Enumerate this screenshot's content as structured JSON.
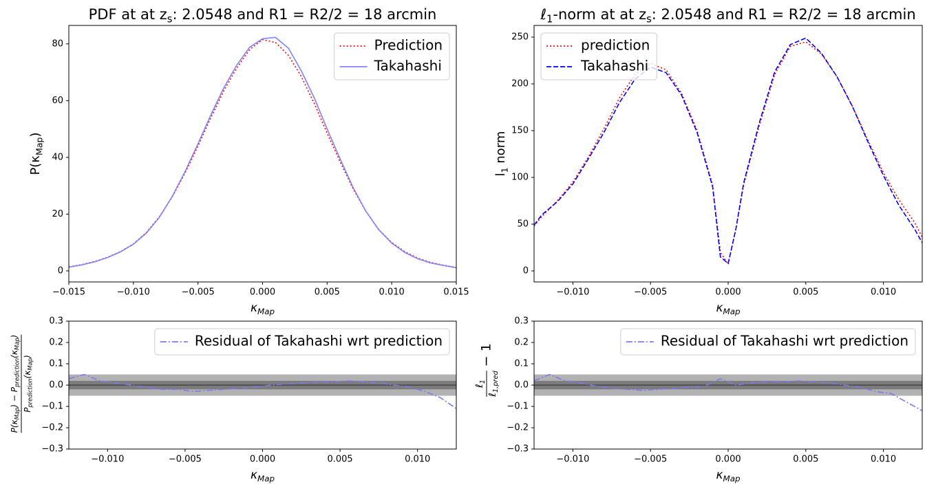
{
  "chart_data": [
    {
      "type": "line",
      "title": [
        "PDF at at z",
        "s",
        ": 2.0548 and R1 = R2/2 = 18 arcmin"
      ],
      "xlabel": [
        "κ",
        "Map"
      ],
      "ylabel": [
        "P(κ",
        "Map",
        ")"
      ],
      "xlim": [
        -0.015,
        0.015
      ],
      "ylim": [
        -3.9,
        86.5
      ],
      "xticks": [
        {
          "value": -0.015,
          "label": "−0.015"
        },
        {
          "value": -0.01,
          "label": "−0.010"
        },
        {
          "value": -0.005,
          "label": "−0.005"
        },
        {
          "value": 0,
          "label": "0.000"
        },
        0.005,
        {
          "value": 0.01,
          "label": "0.010"
        },
        0.015
      ],
      "yticks": [
        0,
        20,
        40,
        60,
        80
      ],
      "legend": "upper right",
      "x": [
        -0.015,
        -0.014,
        -0.013,
        -0.012,
        -0.011,
        -0.01,
        -0.009,
        -0.008,
        -0.007,
        -0.006,
        -0.005,
        -0.004,
        -0.003,
        -0.002,
        -0.001,
        0,
        0.001,
        0.002,
        0.003,
        0.004,
        0.005,
        0.006,
        0.007,
        0.008,
        0.009,
        0.01,
        0.011,
        0.012,
        0.013,
        0.014,
        0.015
      ],
      "series": [
        {
          "name": "Prediction",
          "color": "#ff0000",
          "linestyle": "dotted",
          "values": [
            1.4,
            2.2,
            3.3,
            4.8,
            6.8,
            9.5,
            13.5,
            19,
            26,
            34.5,
            44,
            54,
            63.5,
            71.5,
            78,
            81.5,
            80.5,
            76,
            68.5,
            59,
            48.5,
            38.5,
            29,
            21,
            14.5,
            10,
            6.8,
            4.5,
            3,
            2,
            1.2
          ]
        },
        {
          "name": "Takahashi",
          "color": "#8080ff",
          "linestyle": "solid",
          "values": [
            1.3,
            2.1,
            3.2,
            4.7,
            6.7,
            9.4,
            13.3,
            18.8,
            26.2,
            35,
            44.8,
            55,
            64.5,
            72.5,
            78.8,
            81.8,
            82.3,
            78.5,
            70.5,
            61,
            50,
            39.5,
            29.5,
            21,
            14.5,
            9.8,
            6.5,
            4.3,
            2.8,
            1.9,
            1.1
          ]
        }
      ]
    },
    {
      "type": "line",
      "title": [
        "ℓ",
        "1",
        "-norm at at z",
        "s",
        ": 2.0548 and R1 = R2/2 = 18 arcmin"
      ],
      "xlabel": [
        "κ",
        "Map"
      ],
      "ylabel": [
        "l",
        "1",
        " norm"
      ],
      "xlim": [
        -0.0125,
        0.0125
      ],
      "ylim": [
        -11.8,
        262.5
      ],
      "xticks": [
        {
          "value": -0.01,
          "label": "−0.010"
        },
        {
          "value": -0.005,
          "label": "−0.005"
        },
        {
          "value": 0,
          "label": "0.000"
        },
        0.005,
        {
          "value": 0.01,
          "label": "0.010"
        }
      ],
      "yticks": [
        0,
        50,
        100,
        150,
        200,
        250
      ],
      "legend": "upper left",
      "x": [
        -0.0125,
        -0.012,
        -0.011,
        -0.01,
        -0.009,
        -0.008,
        -0.007,
        -0.006,
        -0.005,
        -0.004,
        -0.003,
        -0.002,
        -0.001,
        -0.0005,
        0,
        0.0005,
        0.001,
        0.002,
        0.003,
        0.004,
        0.005,
        0.006,
        0.007,
        0.008,
        0.009,
        0.01,
        0.011,
        0.012,
        0.0125
      ],
      "series": [
        {
          "name": "prediction",
          "color": "#ff0000",
          "linestyle": "dotted",
          "values": [
            48,
            58,
            75,
            95,
            122,
            152,
            185,
            210,
            222,
            215,
            190,
            150,
            92,
            20,
            7,
            45,
            92,
            155,
            210,
            240,
            245,
            232,
            208,
            176,
            140,
            105,
            76,
            52,
            36
          ]
        },
        {
          "name": "Takahashi",
          "color": "#0000ff",
          "linestyle": "dashed",
          "values": [
            49,
            60,
            74,
            93,
            120,
            148,
            180,
            205,
            218,
            212,
            188,
            148,
            90,
            15,
            8,
            45,
            94,
            158,
            213,
            242,
            249,
            233,
            208,
            176,
            138,
            102,
            70,
            45,
            30
          ]
        }
      ]
    },
    {
      "type": "line",
      "xlabel": [
        "κ",
        "Map"
      ],
      "ylabel": {
        "numerator": [
          "P(κ",
          "Map",
          ") − P",
          "prediction",
          "(κ",
          "Map",
          ")"
        ],
        "denominator": [
          "P",
          "prediction",
          "(κ",
          "Map",
          ")"
        ]
      },
      "xlim": [
        -0.0125,
        0.0125
      ],
      "ylim": [
        -0.3,
        0.3
      ],
      "xticks": [
        {
          "value": -0.01,
          "label": "−0.010"
        },
        {
          "value": -0.005,
          "label": "−0.005"
        },
        {
          "value": 0,
          "label": "0.000"
        },
        0.005,
        {
          "value": 0.01,
          "label": "0.010"
        }
      ],
      "yticks": [
        {
          "value": -0.3,
          "label": "−0.3"
        },
        {
          "value": -0.2,
          "label": "−0.2"
        },
        {
          "value": -0.1,
          "label": "−0.1"
        },
        {
          "value": 0,
          "label": "0.0"
        },
        0.1,
        0.2,
        0.3
      ],
      "bands": [
        [
          -0.05,
          0.05
        ],
        [
          -0.02,
          0.02
        ]
      ],
      "hline": 0,
      "legend": "upper right",
      "x": [
        -0.0125,
        -0.0115,
        -0.0105,
        -0.0095,
        -0.0085,
        -0.0075,
        -0.0065,
        -0.0055,
        -0.0045,
        -0.0035,
        -0.0025,
        -0.0015,
        -0.0005,
        0.0005,
        0.0015,
        0.0025,
        0.0035,
        0.0045,
        0.0055,
        0.0065,
        0.0075,
        0.0085,
        0.0095,
        0.0105,
        0.0115,
        0.0125
      ],
      "series": [
        {
          "name": "Residual of Takahashi wrt prediction",
          "color": "#7a7af0",
          "linestyle": "dashdot",
          "values": [
            0.03,
            0.05,
            0.02,
            0.01,
            0,
            -0.01,
            -0.02,
            -0.02,
            -0.03,
            -0.025,
            -0.02,
            -0.015,
            -0.01,
            0,
            0.005,
            0.01,
            0.015,
            0.015,
            0.02,
            0.015,
            0.01,
            0,
            -0.01,
            -0.03,
            -0.06,
            -0.11
          ]
        }
      ]
    },
    {
      "type": "line",
      "xlabel": [
        "κ",
        "Map"
      ],
      "ylabel": {
        "numerator": [
          "ℓ",
          "1"
        ],
        "denominator": [
          "ℓ",
          "1,pred"
        ],
        "suffix": "− 1"
      },
      "xlim": [
        -0.0125,
        0.0125
      ],
      "ylim": [
        -0.3,
        0.3
      ],
      "xticks": [
        {
          "value": -0.01,
          "label": "−0.010"
        },
        {
          "value": -0.005,
          "label": "−0.005"
        },
        {
          "value": 0,
          "label": "0.000"
        },
        0.005,
        {
          "value": 0.01,
          "label": "0.010"
        }
      ],
      "yticks": [
        {
          "value": -0.3,
          "label": "−0.3"
        },
        {
          "value": -0.2,
          "label": "−0.2"
        },
        {
          "value": -0.1,
          "label": "−0.1"
        },
        {
          "value": 0,
          "label": "0.0"
        },
        0.1,
        0.2,
        0.3
      ],
      "bands": [
        [
          -0.05,
          0.05
        ],
        [
          -0.02,
          0.02
        ]
      ],
      "hline": 0,
      "legend": "upper right",
      "x": [
        -0.0125,
        -0.0115,
        -0.0105,
        -0.0095,
        -0.0085,
        -0.0075,
        -0.0065,
        -0.0055,
        -0.0045,
        -0.0035,
        -0.0025,
        -0.0015,
        -0.0005,
        0.0005,
        0.0015,
        0.0025,
        0.0035,
        0.0045,
        0.0055,
        0.0065,
        0.0075,
        0.0085,
        0.0095,
        0.0105,
        0.0115,
        0.0125
      ],
      "series": [
        {
          "name": "Residual of Takahashi wrt prediction",
          "color": "#7a7af0",
          "linestyle": "dashdot",
          "values": [
            0.02,
            0.05,
            0.02,
            0.01,
            -0.005,
            -0.015,
            -0.02,
            -0.025,
            -0.02,
            -0.015,
            -0.01,
            -0.005,
            0.03,
            0,
            0.01,
            0.015,
            0.015,
            0.02,
            0.015,
            0.01,
            0,
            -0.01,
            -0.03,
            -0.04,
            -0.08,
            -0.12
          ]
        }
      ]
    }
  ]
}
